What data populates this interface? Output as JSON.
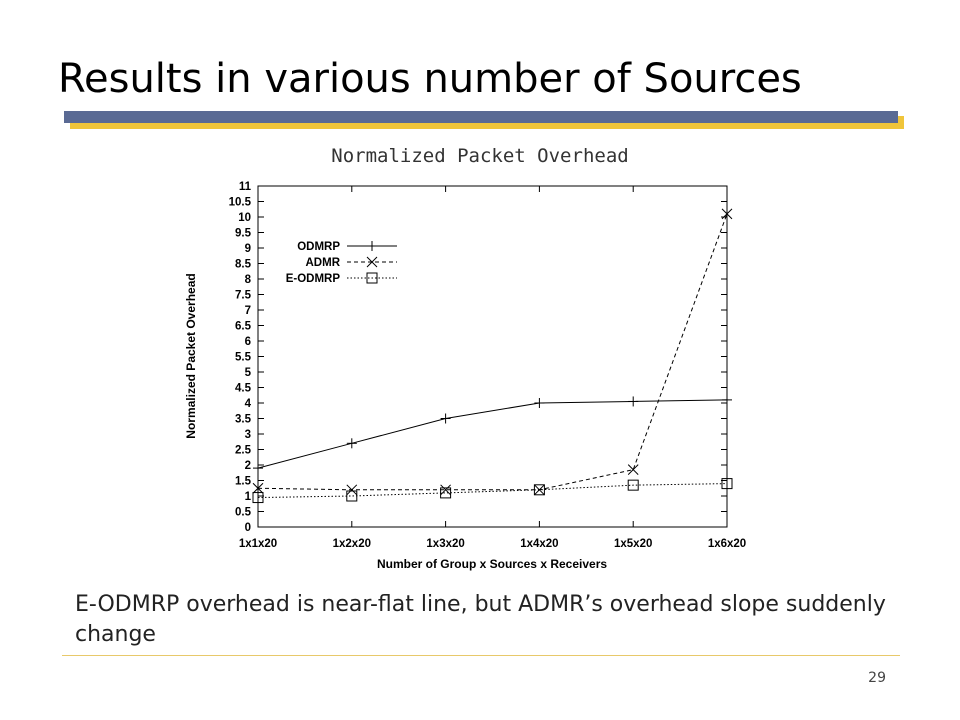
{
  "slide": {
    "title": "Results in various number of Sources",
    "caption": "E-ODMRP overhead is near-flat line, but ADMR’s overhead slope suddenly change",
    "page_number": "29",
    "colors": {
      "title_bar": "#5a6a94",
      "title_bar_shadow": "#f0c53a",
      "footer_line": "#e8c96a"
    }
  },
  "chart_data": {
    "type": "line",
    "title": "Normalized Packet Overhead",
    "xlabel": "Number of Group x Sources x Receivers",
    "ylabel": "Normalized Packet Overhead",
    "categories": [
      "1x1x20",
      "1x2x20",
      "1x3x20",
      "1x4x20",
      "1x5x20",
      "1x6x20"
    ],
    "ylim": [
      0,
      11
    ],
    "yticks": [
      "0",
      "0.5",
      "1",
      "1.5",
      "2",
      "2.5",
      "3",
      "3.5",
      "4",
      "4.5",
      "5",
      "5.5",
      "6",
      "6.5",
      "7",
      "7.5",
      "8",
      "8.5",
      "9",
      "9.5",
      "10",
      "10.5",
      "11"
    ],
    "grid": false,
    "legend_position": "top-left",
    "series": [
      {
        "name": "ODMRP",
        "marker": "plus",
        "dash": "solid",
        "values": [
          1.9,
          2.7,
          3.5,
          4.0,
          4.05,
          4.1
        ]
      },
      {
        "name": "ADMR",
        "marker": "cross",
        "dash": "dashed",
        "values": [
          1.25,
          1.2,
          1.2,
          1.2,
          1.85,
          10.1
        ]
      },
      {
        "name": "E-ODMRP",
        "marker": "square",
        "dash": "dotted",
        "values": [
          0.95,
          1.0,
          1.1,
          1.2,
          1.35,
          1.4
        ]
      }
    ]
  }
}
